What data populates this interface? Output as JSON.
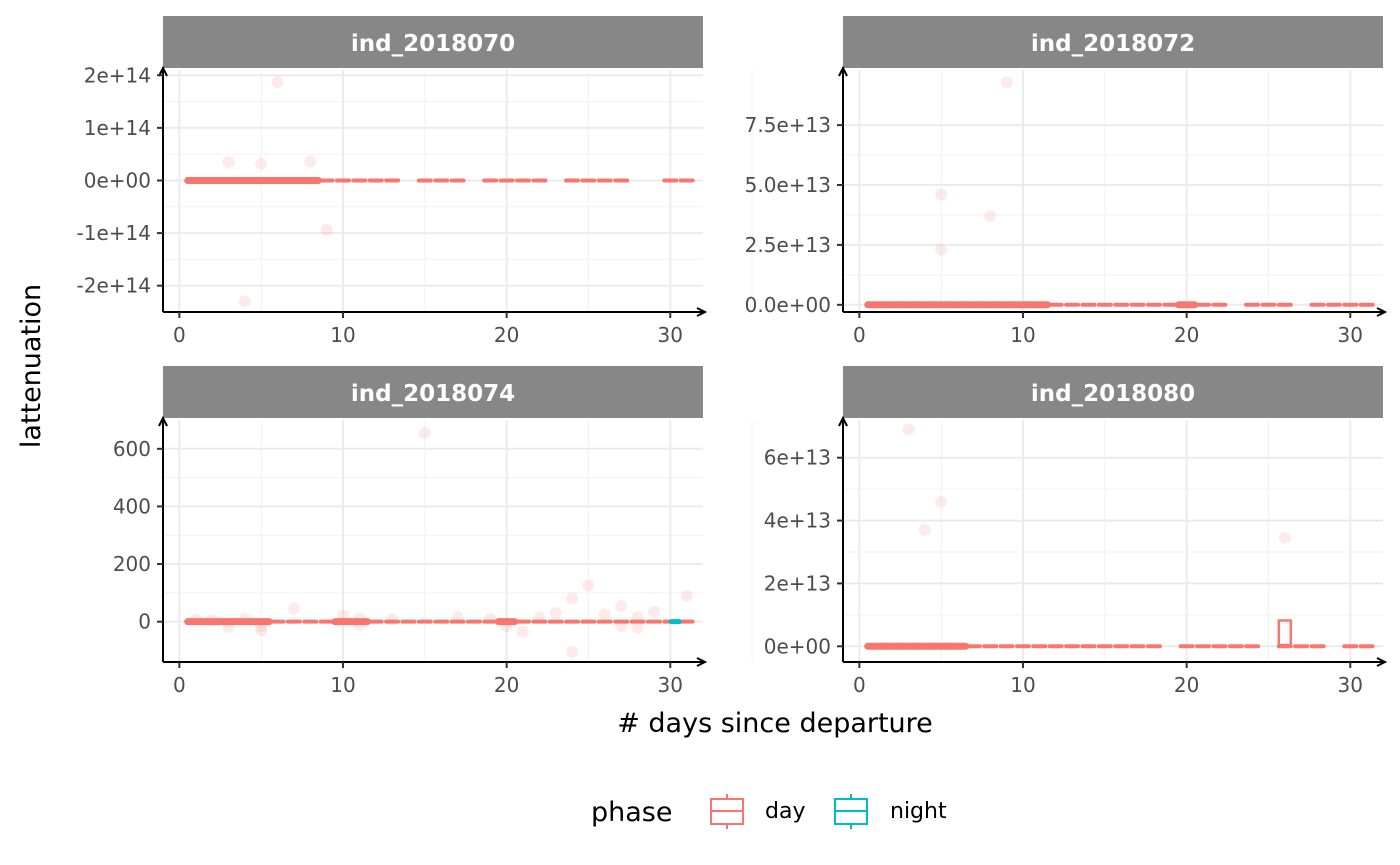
{
  "chart_data": {
    "type": "boxplot",
    "xlabel": "# days since departure",
    "ylabel": "lattenuation",
    "legend": {
      "title": "phase",
      "position": "bottom",
      "entries": [
        {
          "label": "day",
          "color": "#F8766D"
        },
        {
          "label": "night",
          "color": "#00BFC4"
        }
      ]
    },
    "grid": true,
    "panels": [
      {
        "strip": "ind_2018070",
        "xlim": [
          -1,
          32
        ],
        "ylim": [
          -250000000000000.0,
          210000000000000.0
        ],
        "x_ticks": [
          0,
          10,
          20,
          30
        ],
        "x_tick_labels": [
          "0",
          "10",
          "20",
          "30"
        ],
        "y_ticks": [
          -200000000000000.0,
          -100000000000000.0,
          0,
          100000000000000.0,
          200000000000000.0
        ],
        "y_tick_labels": [
          "-2e+14",
          "-1e+14",
          "0e+00",
          "1e+14",
          "2e+14"
        ],
        "day_boxes": [
          1,
          2,
          3,
          4,
          5,
          6,
          7,
          8,
          9,
          10,
          11,
          12,
          13,
          15,
          16,
          17,
          19,
          20,
          21,
          22,
          24,
          25,
          26,
          27,
          30,
          31
        ],
        "thick_days": [
          1,
          2,
          3,
          4,
          5,
          6,
          7,
          8
        ],
        "night_boxes": [],
        "outliers": [
          [
            3,
            35000000000000.0
          ],
          [
            5,
            32000000000000.0
          ],
          [
            6,
            187000000000000.0
          ],
          [
            8,
            36000000000000.0
          ],
          [
            9,
            -94000000000000.0
          ],
          [
            4,
            -230000000000000.0
          ]
        ],
        "day_outlier_boxes": []
      },
      {
        "strip": "ind_2018072",
        "xlim": [
          -1,
          32
        ],
        "ylim": [
          -3000000000000.0,
          98000000000000.0
        ],
        "x_ticks": [
          0,
          10,
          20,
          30
        ],
        "x_tick_labels": [
          "0",
          "10",
          "20",
          "30"
        ],
        "y_ticks": [
          0,
          25000000000000.0,
          50000000000000.0,
          75000000000000.0
        ],
        "y_tick_labels": [
          "0.0e+00",
          "2.5e+13",
          "5.0e+13",
          "7.5e+13"
        ],
        "day_boxes": [
          1,
          2,
          3,
          4,
          5,
          6,
          7,
          8,
          9,
          10,
          11,
          12,
          13,
          14,
          15,
          16,
          17,
          18,
          19,
          20,
          21,
          22,
          24,
          25,
          26,
          28,
          29,
          30,
          31
        ],
        "thick_days": [
          1,
          2,
          3,
          4,
          5,
          6,
          7,
          8,
          9,
          10,
          11,
          20
        ],
        "night_boxes": [],
        "outliers": [
          [
            5,
            46000000000000.0
          ],
          [
            5,
            23000000000000.0
          ],
          [
            8,
            37000000000000.0
          ],
          [
            9,
            93000000000000.0
          ]
        ],
        "day_outlier_boxes": []
      },
      {
        "strip": "ind_2018074",
        "xlim": [
          -1,
          32
        ],
        "ylim": [
          -140,
          700
        ],
        "x_ticks": [
          0,
          10,
          20,
          30
        ],
        "x_tick_labels": [
          "0",
          "10",
          "20",
          "30"
        ],
        "y_ticks": [
          0,
          200,
          400,
          600
        ],
        "y_tick_labels": [
          "0",
          "200",
          "400",
          "600"
        ],
        "day_boxes": [
          1,
          2,
          3,
          4,
          5,
          6,
          7,
          8,
          9,
          10,
          11,
          12,
          13,
          14,
          15,
          16,
          17,
          18,
          19,
          20,
          21,
          22,
          23,
          24,
          25,
          26,
          27,
          28,
          29,
          30,
          31
        ],
        "thick_days": [
          1,
          2,
          3,
          4,
          5,
          10,
          11,
          20
        ],
        "night_boxes": [
          30.3
        ],
        "outliers": [
          [
            1,
            8
          ],
          [
            2,
            5
          ],
          [
            3,
            -18
          ],
          [
            4,
            10
          ],
          [
            5,
            -30
          ],
          [
            5,
            -15
          ],
          [
            7,
            45
          ],
          [
            10,
            20
          ],
          [
            11,
            -10
          ],
          [
            11,
            12
          ],
          [
            13,
            8
          ],
          [
            15,
            655
          ],
          [
            17,
            15
          ],
          [
            19,
            10
          ],
          [
            20,
            -15
          ],
          [
            21,
            -35
          ],
          [
            22,
            15
          ],
          [
            23,
            30
          ],
          [
            24,
            80
          ],
          [
            24,
            -105
          ],
          [
            25,
            125
          ],
          [
            26,
            25
          ],
          [
            27,
            55
          ],
          [
            27,
            -15
          ],
          [
            28,
            15
          ],
          [
            28,
            -20
          ],
          [
            29,
            35
          ],
          [
            31,
            90
          ]
        ],
        "day_outlier_boxes": []
      },
      {
        "strip": "ind_2018080",
        "xlim": [
          -1,
          32
        ],
        "ylim": [
          -5000000000000.0,
          72000000000000.0
        ],
        "x_ticks": [
          0,
          10,
          20,
          30
        ],
        "x_tick_labels": [
          "0",
          "10",
          "20",
          "30"
        ],
        "y_ticks": [
          0,
          20000000000000.0,
          40000000000000.0,
          60000000000000.0
        ],
        "y_tick_labels": [
          "0e+00",
          "2e+13",
          "4e+13",
          "6e+13"
        ],
        "day_boxes": [
          1,
          2,
          3,
          4,
          5,
          6,
          7,
          8,
          9,
          10,
          11,
          12,
          13,
          14,
          15,
          16,
          17,
          18,
          20,
          21,
          22,
          23,
          24,
          26,
          27,
          28,
          30,
          31
        ],
        "thick_days": [
          1,
          2,
          3,
          4,
          5,
          6
        ],
        "night_boxes": [],
        "outliers": [
          [
            3,
            69000000000000.0
          ],
          [
            4,
            37000000000000.0
          ],
          [
            5,
            46000000000000.0
          ],
          [
            26,
            34500000000000.0
          ]
        ],
        "day_outlier_boxes": [
          {
            "x": 26,
            "low": 0,
            "high": 8200000000000.0
          }
        ]
      }
    ]
  }
}
